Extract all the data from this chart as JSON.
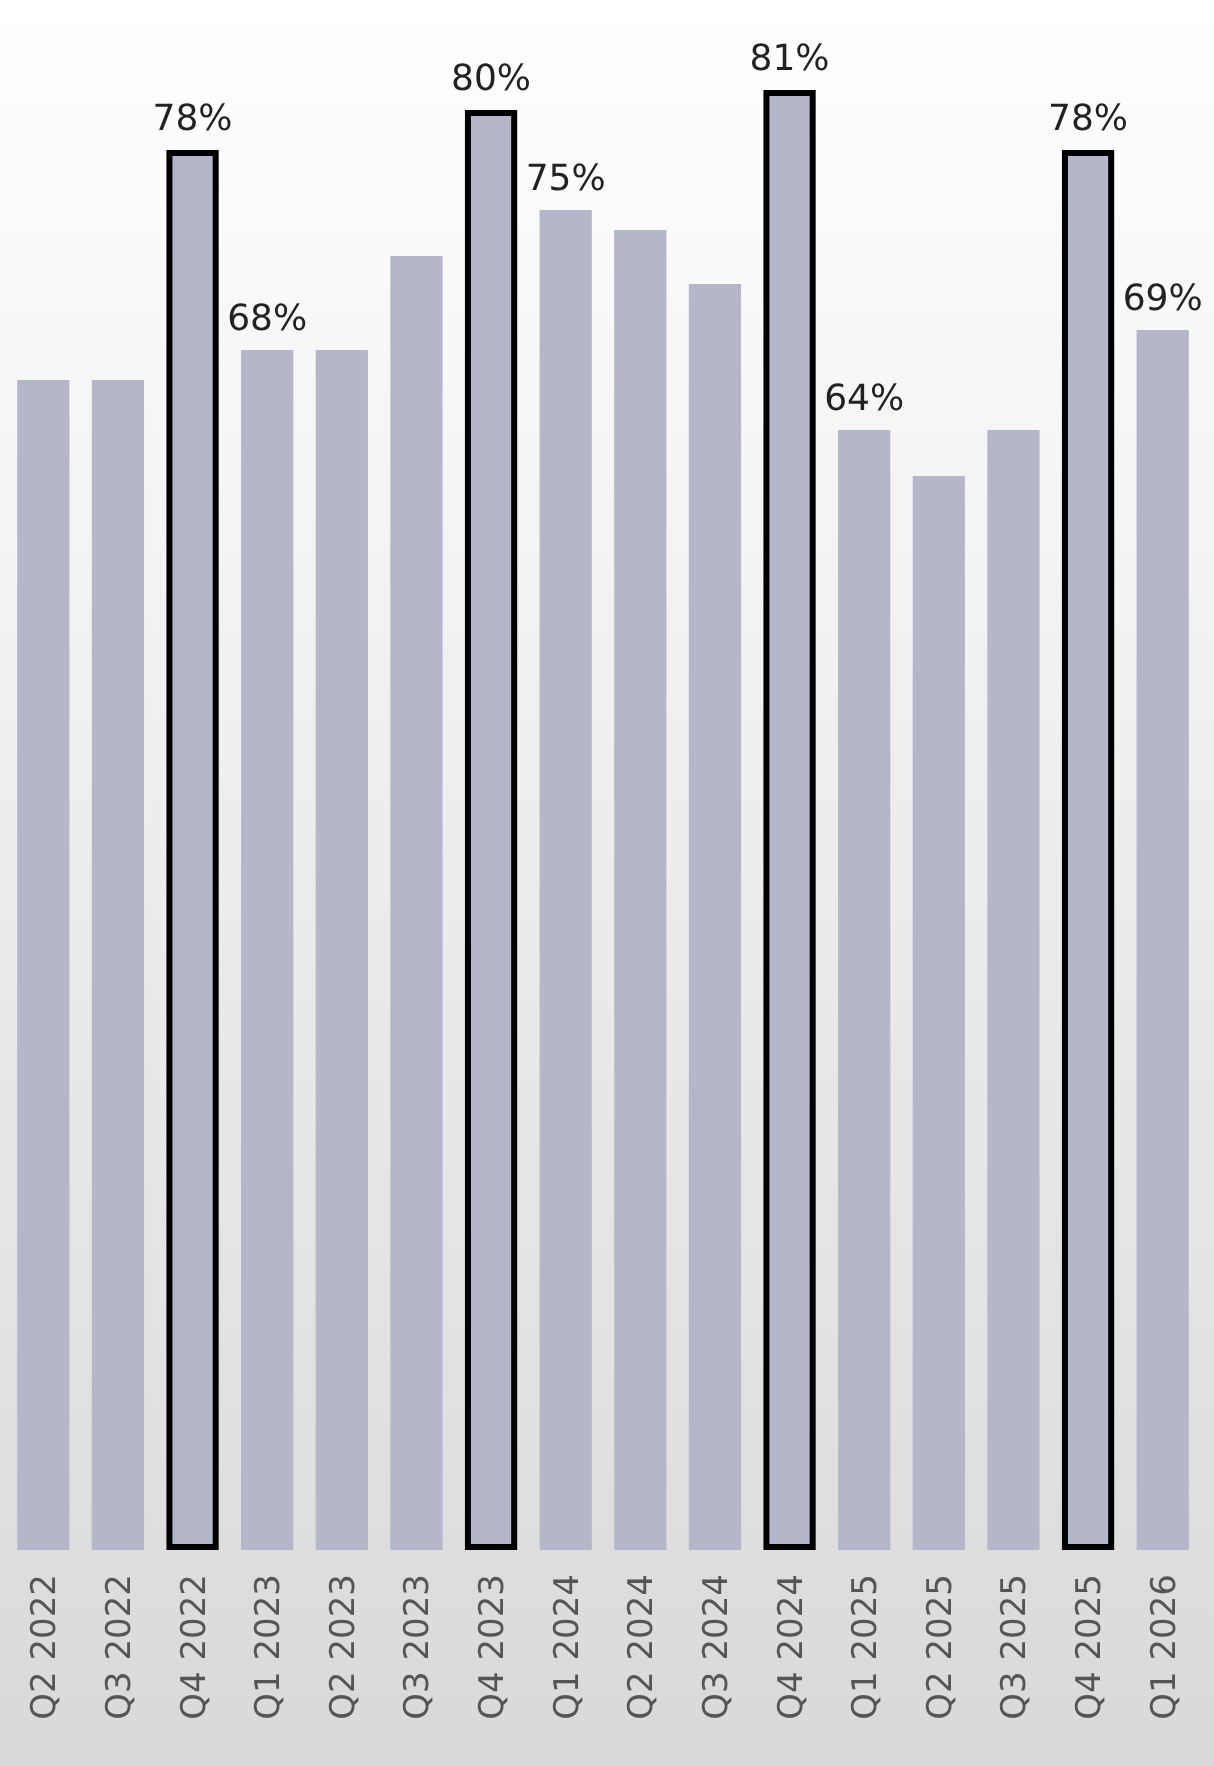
{
  "chart_data": {
    "type": "bar",
    "categories": [
      "Q2 2022",
      "Q3 2022",
      "Q4 2022",
      "Q1 2023",
      "Q2 2023",
      "Q3 2023",
      "Q4 2023",
      "Q1 2024",
      "Q2 2024",
      "Q3 2024",
      "Q4 2024",
      "Q1 2025",
      "Q2 2025",
      "Q3 2025",
      "Q4 2025",
      "Q1 2026"
    ],
    "series": [
      {
        "color": "#b4b7c9",
        "values": [
          66.5,
          66.5,
          null,
          68,
          68,
          72.7,
          null,
          75,
          74,
          71.3,
          null,
          64,
          61.7,
          64,
          null,
          69
        ],
        "value_labels": [
          null,
          null,
          null,
          "68%",
          null,
          null,
          null,
          "75%",
          null,
          null,
          null,
          "64%",
          null,
          null,
          null,
          "69%"
        ]
      },
      {
        "color": "#b4b7c9",
        "values": [
          null,
          null,
          78,
          null,
          null,
          null,
          80,
          null,
          null,
          null,
          81,
          null,
          null,
          null,
          78,
          null
        ],
        "value_labels": [
          null,
          null,
          "78%",
          null,
          null,
          null,
          "80%",
          null,
          null,
          null,
          "81%",
          null,
          null,
          null,
          "78%",
          null
        ]
      }
    ],
    "ylim": [
      8,
      85
    ],
    "tick_labels": "x"
  }
}
